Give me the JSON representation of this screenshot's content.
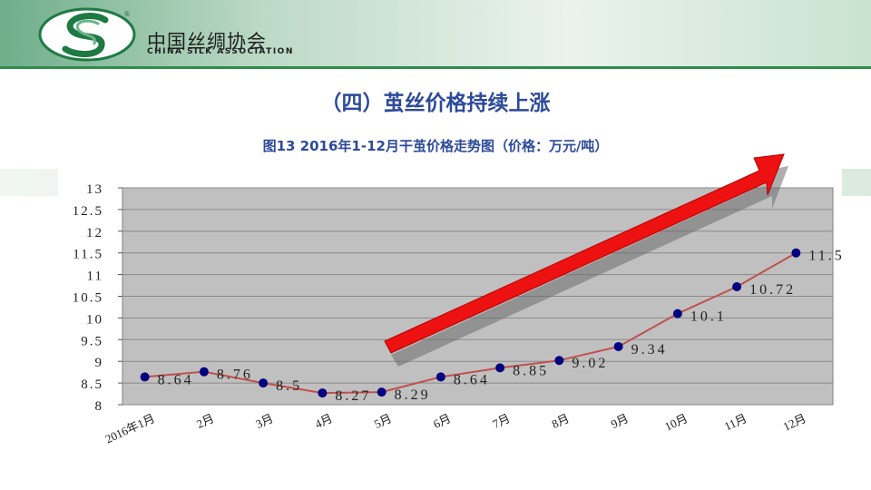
{
  "header": {
    "org_cn": "中国丝绸协会",
    "org_en": "CHINA SILK ASSOCIATION",
    "logo_mark": "®"
  },
  "slide": {
    "title": "（四）茧丝价格持续上涨",
    "chart_caption": "图13   2016年1-12月干茧价格走势图（价格：万元/吨）"
  },
  "chart_data": {
    "type": "line",
    "categories": [
      "2016年1月",
      "2月",
      "3月",
      "4月",
      "5月",
      "6月",
      "7月",
      "8月",
      "9月",
      "10月",
      "11月",
      "12月"
    ],
    "series": [
      {
        "values": [
          8.64,
          8.76,
          8.5,
          8.27,
          8.29,
          8.64,
          8.85,
          9.02,
          9.34,
          10.1,
          10.72,
          11.5
        ]
      }
    ],
    "data_labels": [
      "8.64",
      "8.76",
      "8.5",
      "8.27",
      "8.29",
      "8.64",
      "8.85",
      "9.02",
      "9.34",
      "10.1",
      "10.72",
      "11.5"
    ],
    "yticks": [
      "8",
      "8.5",
      "9",
      "9.5",
      "10",
      "10.5",
      "11",
      "11.5",
      "12",
      "12.5",
      "13"
    ],
    "ylim": [
      8,
      13
    ],
    "grid": true,
    "annotation": "red upward trend arrow",
    "colors": {
      "plot_bg": "#c0c0c0",
      "line": "#c0504d",
      "marker": "#000080",
      "arrow": "#ee1111",
      "title": "#2d4a9a"
    }
  }
}
